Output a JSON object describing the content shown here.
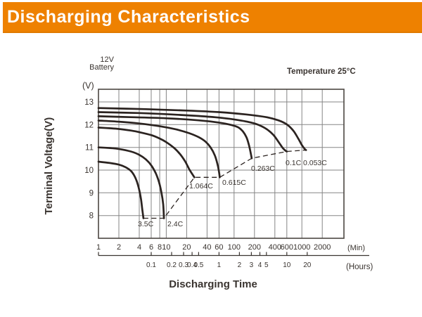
{
  "header": {
    "title": "Discharging Characteristics",
    "accent_color": "#EE8100",
    "title_color": "#ffffff"
  },
  "chart_data": {
    "type": "line",
    "title": "Discharging Characteristics",
    "battery_label": [
      "12V",
      "Battery"
    ],
    "temperature_note": "Temperature 25°C",
    "xlabel": "Discharging Time",
    "ylabel": "Terminal Voltage(V)",
    "y_axis_unit": "(V)",
    "x_axis_units": {
      "minutes": "(Min)",
      "hours": "(Hours)"
    },
    "x_scale": "log",
    "grid": true,
    "ylim": [
      7,
      13.55
    ],
    "xlim_minutes": [
      1,
      4200
    ],
    "legend_position": "inline-curve-labels",
    "y_ticks": [
      [
        13,
        "13"
      ],
      [
        12,
        "12"
      ],
      [
        11,
        "11"
      ],
      [
        10,
        "10"
      ],
      [
        9,
        "9"
      ],
      [
        8,
        "8"
      ]
    ],
    "x_ticks_minutes": [
      [
        1,
        "1"
      ],
      [
        2,
        "2"
      ],
      [
        4,
        "4"
      ],
      [
        6,
        "6"
      ],
      [
        8,
        "8"
      ],
      [
        10,
        "10"
      ],
      [
        20,
        "20"
      ],
      [
        40,
        "40"
      ],
      [
        60,
        "60"
      ],
      [
        100,
        "100"
      ],
      [
        200,
        "200"
      ],
      [
        400,
        "400"
      ],
      [
        600,
        "600"
      ],
      [
        1000,
        "1000"
      ],
      [
        2000,
        "2000"
      ]
    ],
    "x_ticks_hours": [
      [
        0.1,
        "0.1"
      ],
      [
        0.2,
        "0.2"
      ],
      [
        0.3,
        "0.3"
      ],
      [
        0.4,
        "0.4"
      ],
      [
        0.5,
        "0.5"
      ],
      [
        1,
        "1"
      ],
      [
        2,
        "2"
      ],
      [
        3,
        "3"
      ],
      [
        4,
        "4"
      ],
      [
        5,
        "5"
      ],
      [
        10,
        "10"
      ],
      [
        20,
        "20"
      ]
    ],
    "series": [
      {
        "name": "3.5C",
        "label_pos": [
          196,
          322
        ],
        "points": [
          [
            1,
            10.37
          ],
          [
            1.5,
            10.31
          ],
          [
            2,
            10.24
          ],
          [
            2.5,
            10.13
          ],
          [
            3,
            9.97
          ],
          [
            3.4,
            9.74
          ],
          [
            3.7,
            9.48
          ],
          [
            4,
            9.12
          ],
          [
            4.25,
            8.7
          ],
          [
            4.45,
            8.22
          ],
          [
            4.6,
            7.88
          ]
        ]
      },
      {
        "name": "2.4C",
        "label_pos": [
          238,
          322
        ],
        "points": [
          [
            1,
            11
          ],
          [
            1.5,
            10.97
          ],
          [
            2,
            10.93
          ],
          [
            3,
            10.82
          ],
          [
            4,
            10.67
          ],
          [
            5,
            10.47
          ],
          [
            6,
            10.21
          ],
          [
            7,
            9.86
          ],
          [
            7.8,
            9.48
          ],
          [
            8.5,
            9
          ],
          [
            9,
            8.5
          ],
          [
            9.25,
            7.88
          ]
        ]
      },
      {
        "name": "1.064C",
        "label_pos": [
          269,
          268
        ],
        "points": [
          [
            1,
            11.87
          ],
          [
            1.5,
            11.84
          ],
          [
            2,
            11.81
          ],
          [
            3,
            11.74
          ],
          [
            4,
            11.67
          ],
          [
            6,
            11.54
          ],
          [
            8,
            11.39
          ],
          [
            10,
            11.23
          ],
          [
            13,
            10.98
          ],
          [
            16,
            10.7
          ],
          [
            19,
            10.38
          ],
          [
            22,
            10.02
          ],
          [
            24.5,
            9.8
          ],
          [
            26,
            9.68
          ]
        ]
      },
      {
        "name": "0.615C",
        "label_pos": [
          316,
          263
        ],
        "points": [
          [
            1,
            12.18
          ],
          [
            2,
            12.13
          ],
          [
            4,
            12.05
          ],
          [
            8,
            11.93
          ],
          [
            14,
            11.79
          ],
          [
            22,
            11.62
          ],
          [
            30,
            11.45
          ],
          [
            38,
            11.25
          ],
          [
            45,
            11
          ],
          [
            52,
            10.65
          ],
          [
            57,
            10.25
          ],
          [
            60,
            9.92
          ],
          [
            61.5,
            9.68
          ]
        ]
      },
      {
        "name": "0.263C",
        "label_pos": [
          357,
          243
        ],
        "points": [
          [
            1,
            12.37
          ],
          [
            3,
            12.33
          ],
          [
            10,
            12.28
          ],
          [
            30,
            12.19
          ],
          [
            60,
            12.09
          ],
          [
            90,
            11.99
          ],
          [
            115,
            11.88
          ],
          [
            135,
            11.7
          ],
          [
            152,
            11.45
          ],
          [
            164,
            11.15
          ],
          [
            174,
            10.82
          ],
          [
            182,
            10.52
          ]
        ]
      },
      {
        "name": "0.1C",
        "label_pos": [
          406,
          235
        ],
        "points": [
          [
            1,
            12.55
          ],
          [
            4,
            12.51
          ],
          [
            12,
            12.45
          ],
          [
            30,
            12.38
          ],
          [
            60,
            12.31
          ],
          [
            100,
            12.23
          ],
          [
            150,
            12.14
          ],
          [
            220,
            12.01
          ],
          [
            300,
            11.81
          ],
          [
            380,
            11.55
          ],
          [
            450,
            11.25
          ],
          [
            520,
            10.98
          ],
          [
            570,
            10.86
          ],
          [
            600,
            10.82
          ]
        ]
      },
      {
        "name": "0.053C",
        "label_pos": [
          431,
          235
        ],
        "points": [
          [
            1,
            12.73
          ],
          [
            5,
            12.68
          ],
          [
            20,
            12.62
          ],
          [
            60,
            12.55
          ],
          [
            150,
            12.45
          ],
          [
            300,
            12.33
          ],
          [
            450,
            12.19
          ],
          [
            600,
            12.01
          ],
          [
            750,
            11.73
          ],
          [
            880,
            11.4
          ],
          [
            1000,
            11.1
          ],
          [
            1100,
            10.93
          ],
          [
            1150,
            10.88
          ]
        ]
      }
    ],
    "cutoff_line": {
      "style": "dashed",
      "points": [
        [
          4.6,
          7.88
        ],
        [
          9.25,
          7.88
        ],
        [
          26,
          9.68
        ],
        [
          61.5,
          9.68
        ],
        [
          182,
          10.52
        ],
        [
          600,
          10.82
        ],
        [
          1150,
          10.88
        ]
      ]
    },
    "colors": {
      "curve": "#2b2320",
      "grid": "#858585",
      "border": "#4d4742",
      "text": "#3a3430"
    }
  }
}
